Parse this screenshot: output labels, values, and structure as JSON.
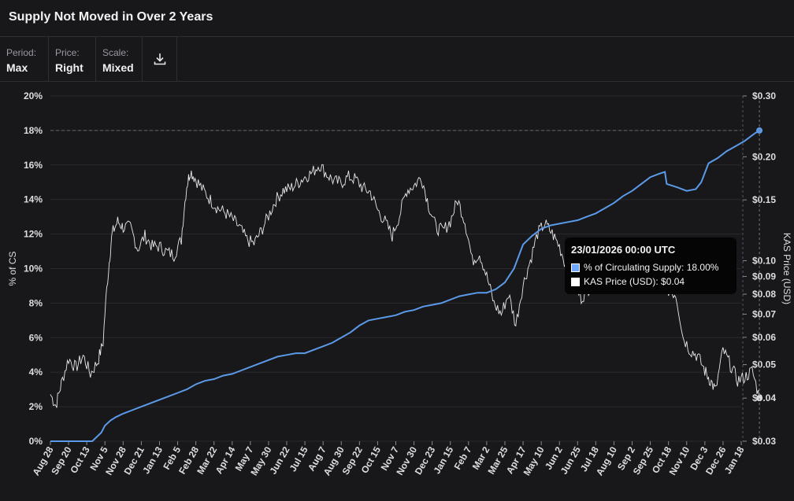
{
  "header": {
    "title": "Supply Not Moved in Over 2 Years"
  },
  "controls": {
    "period": {
      "label": "Period:",
      "value": "Max"
    },
    "price": {
      "label": "Price:",
      "value": "Right"
    },
    "scale": {
      "label": "Scale:",
      "value": "Mixed"
    }
  },
  "tooltip": {
    "title": "23/01/2026 00:00 UTC",
    "rows": [
      {
        "label": "% of Circulating Supply: 18.00%",
        "color": "#6fa8ff"
      },
      {
        "label": "KAS Price (USD): $0.04",
        "color": "#ffffff"
      }
    ]
  },
  "colors": {
    "supply": "#5b9ae8",
    "price": "#e8e8e8",
    "grid": "#2a2a2e",
    "text": "#dddddd"
  },
  "chart_data": {
    "type": "line",
    "title": "Supply Not Moved in Over 2 Years",
    "ylabel_left": "% of CS",
    "ylabel_right": "KAS Price (USD)",
    "x_ticks": [
      "Aug 28",
      "Sep 20",
      "Oct 13",
      "Nov 5",
      "Nov 28",
      "Dec 21",
      "Jan 13",
      "Feb 5",
      "Feb 28",
      "Mar 22",
      "Apr 14",
      "May 7",
      "May 30",
      "Jun 22",
      "Jul 15",
      "Aug 7",
      "Aug 30",
      "Sep 22",
      "Oct 15",
      "Nov 7",
      "Nov 30",
      "Dec 23",
      "Jan 15",
      "Feb 7",
      "Mar 2",
      "Mar 25",
      "Apr 17",
      "May 10",
      "Jun 2",
      "Jun 25",
      "Jul 18",
      "Aug 10",
      "Sep 2",
      "Sep 25",
      "Oct 18",
      "Nov 10",
      "Dec 3",
      "Dec 26",
      "Jan 18"
    ],
    "y_left_ticks": [
      "0%",
      "2%",
      "4%",
      "6%",
      "8%",
      "10%",
      "12%",
      "14%",
      "16%",
      "18%",
      "20%"
    ],
    "y_left_range": [
      0,
      20
    ],
    "y_right_ticks": [
      {
        "value": 0.03,
        "label": "$0.03"
      },
      {
        "value": 0.04,
        "label": "$0.04"
      },
      {
        "value": 0.05,
        "label": "$0.05"
      },
      {
        "value": 0.06,
        "label": "$0.06"
      },
      {
        "value": 0.07,
        "label": "$0.07"
      },
      {
        "value": 0.08,
        "label": "$0.08"
      },
      {
        "value": 0.09,
        "label": "$0.09"
      },
      {
        "value": 0.1,
        "label": "$0.10"
      },
      {
        "value": 0.15,
        "label": "$0.15"
      },
      {
        "value": 0.2,
        "label": "$0.20"
      },
      {
        "value": 0.3,
        "label": "$0.30"
      }
    ],
    "y_right_range": [
      0.03,
      0.3
    ],
    "y_right_scale": "log",
    "current_value_line": 18.0,
    "series": [
      {
        "name": "% of Circulating Supply",
        "axis": "left",
        "points": [
          [
            0,
            0
          ],
          [
            2.3,
            0
          ],
          [
            2.5,
            0.2
          ],
          [
            2.8,
            0.5
          ],
          [
            3.0,
            0.9
          ],
          [
            3.3,
            1.2
          ],
          [
            3.6,
            1.4
          ],
          [
            4.0,
            1.6
          ],
          [
            4.5,
            1.8
          ],
          [
            5.0,
            2.0
          ],
          [
            5.5,
            2.2
          ],
          [
            6.0,
            2.4
          ],
          [
            6.5,
            2.6
          ],
          [
            7.0,
            2.8
          ],
          [
            7.5,
            3.0
          ],
          [
            8.0,
            3.3
          ],
          [
            8.5,
            3.5
          ],
          [
            9.0,
            3.6
          ],
          [
            9.5,
            3.8
          ],
          [
            10.0,
            3.9
          ],
          [
            10.5,
            4.1
          ],
          [
            11.0,
            4.3
          ],
          [
            11.5,
            4.5
          ],
          [
            12.0,
            4.7
          ],
          [
            12.5,
            4.9
          ],
          [
            13.0,
            5.0
          ],
          [
            13.5,
            5.1
          ],
          [
            14.0,
            5.1
          ],
          [
            14.5,
            5.3
          ],
          [
            15.0,
            5.5
          ],
          [
            15.5,
            5.7
          ],
          [
            16.0,
            6.0
          ],
          [
            16.5,
            6.3
          ],
          [
            17.0,
            6.7
          ],
          [
            17.5,
            7.0
          ],
          [
            18.0,
            7.1
          ],
          [
            18.5,
            7.2
          ],
          [
            19.0,
            7.3
          ],
          [
            19.5,
            7.5
          ],
          [
            20.0,
            7.6
          ],
          [
            20.5,
            7.8
          ],
          [
            21.0,
            7.9
          ],
          [
            21.5,
            8.0
          ],
          [
            22.0,
            8.2
          ],
          [
            22.5,
            8.4
          ],
          [
            23.0,
            8.5
          ],
          [
            23.5,
            8.6
          ],
          [
            24.0,
            8.6
          ],
          [
            24.5,
            8.8
          ],
          [
            25.0,
            9.2
          ],
          [
            25.5,
            10.0
          ],
          [
            26.0,
            11.4
          ],
          [
            26.5,
            11.9
          ],
          [
            27.0,
            12.3
          ],
          [
            27.5,
            12.5
          ],
          [
            28.0,
            12.6
          ],
          [
            28.5,
            12.7
          ],
          [
            29.0,
            12.8
          ],
          [
            29.5,
            13.0
          ],
          [
            30.0,
            13.2
          ],
          [
            30.5,
            13.5
          ],
          [
            31.0,
            13.8
          ],
          [
            31.5,
            14.2
          ],
          [
            32.0,
            14.5
          ],
          [
            32.5,
            14.9
          ],
          [
            33.0,
            15.3
          ],
          [
            33.5,
            15.5
          ],
          [
            33.8,
            15.6
          ],
          [
            33.9,
            14.9
          ],
          [
            34.2,
            14.8
          ],
          [
            34.5,
            14.7
          ],
          [
            35.0,
            14.5
          ],
          [
            35.5,
            14.6
          ],
          [
            35.8,
            15.0
          ],
          [
            36.2,
            16.1
          ],
          [
            36.7,
            16.4
          ],
          [
            37.2,
            16.8
          ],
          [
            37.7,
            17.1
          ],
          [
            38.2,
            17.4
          ],
          [
            38.7,
            17.8
          ],
          [
            39.0,
            18.0
          ]
        ]
      },
      {
        "name": "KAS Price (USD)",
        "axis": "right",
        "points": [
          [
            0,
            0.041
          ],
          [
            0.3,
            0.038
          ],
          [
            0.6,
            0.044
          ],
          [
            1.0,
            0.052
          ],
          [
            1.4,
            0.049
          ],
          [
            1.8,
            0.053
          ],
          [
            2.2,
            0.047
          ],
          [
            2.6,
            0.051
          ],
          [
            2.9,
            0.058
          ],
          [
            3.2,
            0.095
          ],
          [
            3.4,
            0.12
          ],
          [
            3.7,
            0.13
          ],
          [
            4.0,
            0.125
          ],
          [
            4.4,
            0.125
          ],
          [
            4.8,
            0.108
          ],
          [
            5.2,
            0.118
          ],
          [
            5.6,
            0.11
          ],
          [
            6.0,
            0.11
          ],
          [
            6.4,
            0.106
          ],
          [
            6.8,
            0.104
          ],
          [
            7.2,
            0.115
          ],
          [
            7.5,
            0.165
          ],
          [
            7.7,
            0.182
          ],
          [
            8.0,
            0.172
          ],
          [
            8.4,
            0.16
          ],
          [
            8.8,
            0.15
          ],
          [
            9.2,
            0.142
          ],
          [
            9.6,
            0.138
          ],
          [
            10.0,
            0.132
          ],
          [
            10.4,
            0.125
          ],
          [
            10.8,
            0.115
          ],
          [
            11.2,
            0.112
          ],
          [
            11.6,
            0.122
          ],
          [
            12.0,
            0.135
          ],
          [
            12.4,
            0.15
          ],
          [
            12.8,
            0.16
          ],
          [
            13.2,
            0.162
          ],
          [
            13.6,
            0.168
          ],
          [
            14.0,
            0.175
          ],
          [
            14.4,
            0.18
          ],
          [
            14.8,
            0.19
          ],
          [
            15.2,
            0.178
          ],
          [
            15.6,
            0.17
          ],
          [
            16.0,
            0.168
          ],
          [
            16.4,
            0.175
          ],
          [
            16.8,
            0.172
          ],
          [
            17.2,
            0.162
          ],
          [
            17.6,
            0.158
          ],
          [
            18.0,
            0.14
          ],
          [
            18.4,
            0.13
          ],
          [
            18.8,
            0.118
          ],
          [
            19.2,
            0.135
          ],
          [
            19.6,
            0.16
          ],
          [
            20.0,
            0.165
          ],
          [
            20.4,
            0.175
          ],
          [
            20.8,
            0.145
          ],
          [
            21.2,
            0.125
          ],
          [
            21.6,
            0.122
          ],
          [
            22.0,
            0.13
          ],
          [
            22.4,
            0.15
          ],
          [
            22.8,
            0.13
          ],
          [
            23.2,
            0.1
          ],
          [
            23.6,
            0.105
          ],
          [
            24.0,
            0.09
          ],
          [
            24.4,
            0.075
          ],
          [
            24.8,
            0.07
          ],
          [
            25.2,
            0.08
          ],
          [
            25.6,
            0.065
          ],
          [
            26.0,
            0.085
          ],
          [
            26.4,
            0.1
          ],
          [
            26.8,
            0.12
          ],
          [
            27.2,
            0.128
          ],
          [
            27.6,
            0.12
          ],
          [
            28.0,
            0.11
          ],
          [
            28.4,
            0.095
          ],
          [
            28.8,
            0.085
          ],
          [
            29.2,
            0.078
          ],
          [
            29.6,
            0.083
          ],
          [
            30.0,
            0.09
          ],
          [
            30.4,
            0.095
          ],
          [
            30.8,
            0.098
          ],
          [
            31.2,
            0.1
          ],
          [
            31.6,
            0.095
          ],
          [
            32.0,
            0.092
          ],
          [
            32.4,
            0.092
          ],
          [
            32.8,
            0.09
          ],
          [
            33.2,
            0.088
          ],
          [
            33.6,
            0.085
          ],
          [
            34.0,
            0.082
          ],
          [
            34.4,
            0.08
          ],
          [
            34.8,
            0.06
          ],
          [
            35.2,
            0.055
          ],
          [
            35.6,
            0.053
          ],
          [
            36.0,
            0.048
          ],
          [
            36.3,
            0.045
          ],
          [
            36.6,
            0.042
          ],
          [
            37.0,
            0.055
          ],
          [
            37.4,
            0.05
          ],
          [
            37.8,
            0.045
          ],
          [
            38.2,
            0.046
          ],
          [
            38.6,
            0.048
          ],
          [
            39.0,
            0.04
          ]
        ]
      }
    ]
  }
}
